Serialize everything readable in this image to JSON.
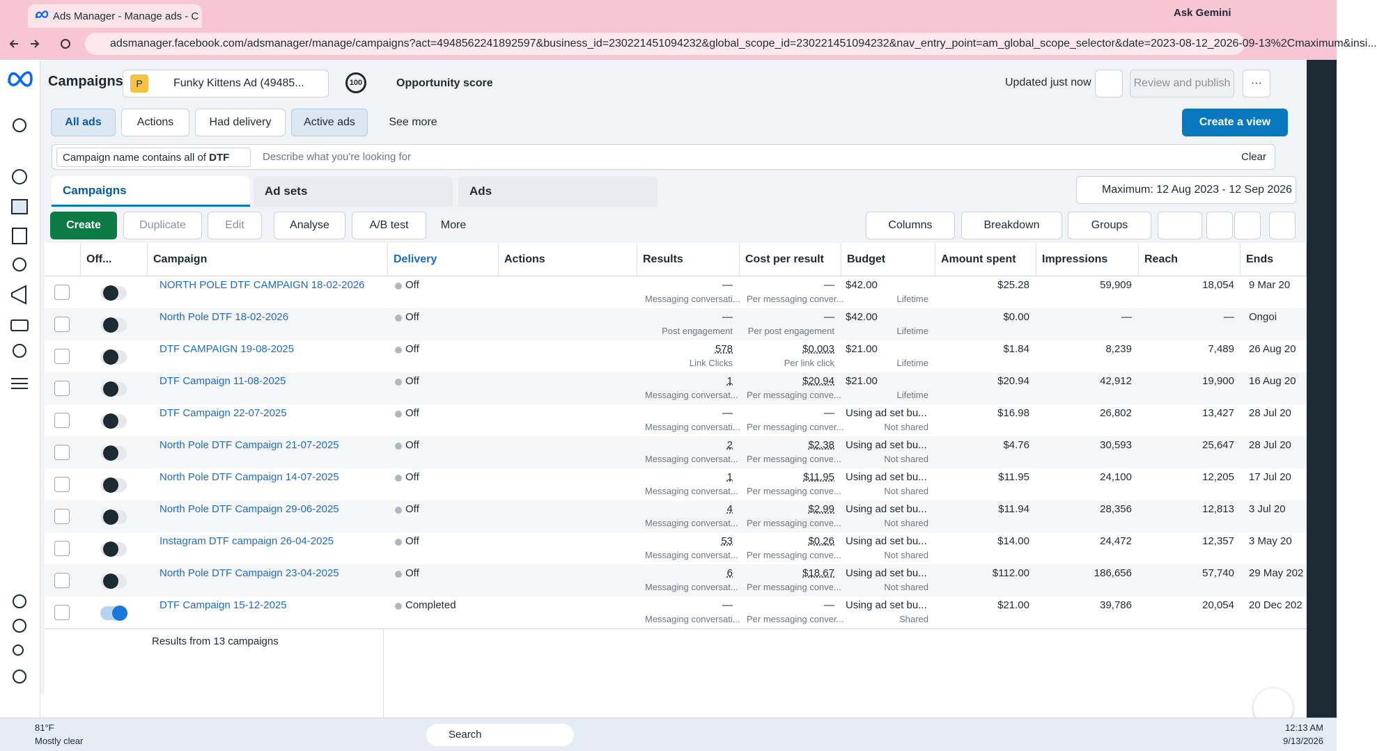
{
  "browser": {
    "tab_title": "Ads Manager - Manage ads - C",
    "assistant": "Ask Gemini",
    "url": "adsmanager.facebook.com/adsmanager/manage/campaigns?act=4948562241892597&business_id=230221451094232&global_scope_id=230221451094232&nav_entry_point=am_global_scope_selector&date=2023-08-12_2026-09-13%2Cmaximum&insi..."
  },
  "header": {
    "title": "Campaigns",
    "account_badge": "P",
    "account": "Funky Kittens Ad (49485...",
    "score": "100",
    "score_label": "Opportunity score",
    "status": "Updated just now",
    "review": "Review and publish"
  },
  "filters": {
    "buttons": [
      "All ads",
      "Actions",
      "Had delivery",
      "Active ads",
      "See more"
    ],
    "create_view": "Create a view"
  },
  "search": {
    "chip_label": "Campaign name contains all of",
    "chip_value": "DTF",
    "placeholder": "Describe what you're looking for",
    "clear": "Clear"
  },
  "tabs": [
    "Campaigns",
    "Ad sets",
    "Ads"
  ],
  "date_range": "Maximum: 12 Aug 2023 - 12 Sep 2026",
  "toolbar": {
    "left": [
      "Create",
      "Duplicate",
      "Edit",
      "Analyse",
      "A/B test",
      "More"
    ],
    "right": [
      "Columns",
      "Breakdown",
      "Groups"
    ]
  },
  "table": {
    "columns": [
      "Off...",
      "Campaign",
      "Delivery",
      "Actions",
      "Results",
      "Cost per result",
      "Budget",
      "Amount spent",
      "Impressions",
      "Reach",
      "Ends"
    ],
    "rows": [
      {
        "on": false,
        "campaign": "NORTH POLE DTF CAMPAIGN 18-02-2026",
        "delivery": "Off",
        "results": "—",
        "results_sub": "Messaging conversati...",
        "cost": "—",
        "cost_sub": "Per messaging conver...",
        "budget": "$42.00",
        "budget_sub": "Lifetime",
        "spent": "$25.28",
        "impressions": "59,909",
        "reach": "18,054",
        "ends": "9 Mar 20"
      },
      {
        "on": false,
        "campaign": "North Pole DTF 18-02-2026",
        "delivery": "Off",
        "results": "—",
        "results_sub": "Post engagement",
        "cost": "—",
        "cost_sub": "Per post engagement",
        "budget": "$42.00",
        "budget_sub": "Lifetime",
        "spent": "$0.00",
        "impressions": "—",
        "reach": "—",
        "ends": "Ongoi"
      },
      {
        "on": false,
        "campaign": "DTF CAMPAIGN 19-08-2025",
        "delivery": "Off",
        "results": "578",
        "results_sub": "Link Clicks",
        "cost": "$0.003",
        "cost_sub": "Per link click",
        "budget": "$21.00",
        "budget_sub": "Lifetime",
        "spent": "$1.84",
        "impressions": "8,239",
        "reach": "7,489",
        "ends": "26 Aug 20"
      },
      {
        "on": false,
        "campaign": "DTF Campaign 11-08-2025",
        "delivery": "Off",
        "results": "1",
        "results_sub": "Messaging conversat...",
        "cost": "$20.94",
        "cost_sub": "Per messaging conve...",
        "budget": "$21.00",
        "budget_sub": "Lifetime",
        "spent": "$20.94",
        "impressions": "42,912",
        "reach": "19,900",
        "ends": "16 Aug 20"
      },
      {
        "on": false,
        "campaign": "DTF Campaign 22-07-2025",
        "delivery": "Off",
        "results": "—",
        "results_sub": "Messaging conversati...",
        "cost": "—",
        "cost_sub": "Per messaging conver...",
        "budget": "Using ad set bu...",
        "budget_sub": "Not shared",
        "spent": "$16.98",
        "impressions": "26,802",
        "reach": "13,427",
        "ends": "28 Jul 20"
      },
      {
        "on": false,
        "campaign": "North Pole DTF Campaign 21-07-2025",
        "delivery": "Off",
        "results": "2",
        "results_sub": "Messaging conversat...",
        "cost": "$2.38",
        "cost_sub": "Per messaging conve...",
        "budget": "Using ad set bu...",
        "budget_sub": "Not shared",
        "spent": "$4.76",
        "impressions": "30,593",
        "reach": "25,647",
        "ends": "28 Jul 20"
      },
      {
        "on": false,
        "campaign": "North Pole DTF Campaign 14-07-2025",
        "delivery": "Off",
        "results": "1",
        "results_sub": "Messaging conversat...",
        "cost": "$11.95",
        "cost_sub": "Per messaging conve...",
        "budget": "Using ad set bu...",
        "budget_sub": "Not shared",
        "spent": "$11.95",
        "impressions": "24,100",
        "reach": "12,205",
        "ends": "17 Jul 20"
      },
      {
        "on": false,
        "campaign": "North Pole DTF Campaign 29-06-2025",
        "delivery": "Off",
        "results": "4",
        "results_sub": "Messaging conversat...",
        "cost": "$2.99",
        "cost_sub": "Per messaging conve...",
        "budget": "Using ad set bu...",
        "budget_sub": "Not shared",
        "spent": "$11.94",
        "impressions": "28,356",
        "reach": "12,813",
        "ends": "3 Jul 20"
      },
      {
        "on": false,
        "campaign": "Instagram DTF campaign 26-04-2025",
        "delivery": "Off",
        "results": "53",
        "results_sub": "Messaging conversat...",
        "cost": "$0.26",
        "cost_sub": "Per messaging conve...",
        "budget": "Using ad set bu...",
        "budget_sub": "Not shared",
        "spent": "$14.00",
        "impressions": "24,472",
        "reach": "12,357",
        "ends": "3 May 20"
      },
      {
        "on": false,
        "campaign": "North Pole DTF Campaign 23-04-2025",
        "delivery": "Off",
        "results": "6",
        "results_sub": "Messaging conversat...",
        "cost": "$18.67",
        "cost_sub": "Per messaging conve...",
        "budget": "Using ad set bu...",
        "budget_sub": "Not shared",
        "spent": "$112.00",
        "impressions": "186,656",
        "reach": "57,740",
        "ends": "29 May 202"
      },
      {
        "on": true,
        "campaign": "DTF Campaign 15-12-2025",
        "delivery": "Completed",
        "results": "—",
        "results_sub": "Messaging conversati...",
        "cost": "—",
        "cost_sub": "Per messaging conver...",
        "budget": "Using ad set bu...",
        "budget_sub": "Shared",
        "spent": "$21.00",
        "impressions": "39,786",
        "reach": "20,054",
        "ends": "20 Dec 202"
      }
    ],
    "footer": "Results from 13 campaigns"
  },
  "taskbar": {
    "temperature": "81°F",
    "weather": "Mostly clear",
    "search": "Search",
    "time": "12:13 AM",
    "date": "9/13/2026"
  }
}
